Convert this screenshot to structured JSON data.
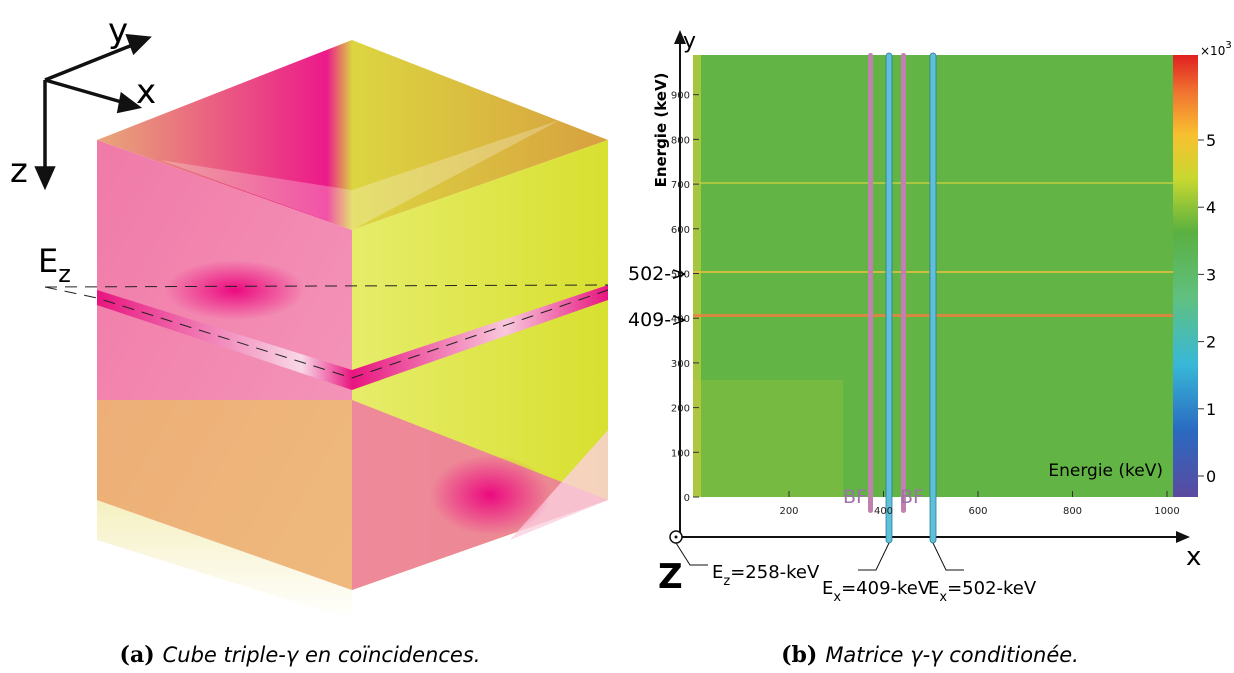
{
  "panel_a": {
    "axis_y": "y",
    "axis_x": "x",
    "axis_z": "z",
    "plane_label": "E",
    "plane_label_sub": "z",
    "caption_tag": "(a)",
    "caption": "Cube triple-γ en coïncidences."
  },
  "panel_b": {
    "y_axis_title": "Energie (keV)",
    "x_axis_title": "Energie (keV)",
    "axis_y": "y",
    "axis_x": "x",
    "axis_z": "Z",
    "xticks": [
      "200",
      "400",
      "600",
      "800",
      "1000"
    ],
    "yticks": [
      "0",
      "100",
      "200",
      "300",
      "400",
      "500",
      "600",
      "700",
      "800",
      "900"
    ],
    "colorbar_ticks": [
      "0",
      "1",
      "2",
      "3",
      "4",
      "5"
    ],
    "colorbar_base": "×10",
    "colorbar_exp": "3",
    "markers": [
      "502->",
      "409->"
    ],
    "bf_labels": [
      "BF",
      "BF"
    ],
    "gates": [
      {
        "main": "E",
        "sub": "z",
        "text": "=258-keV"
      },
      {
        "main": "E",
        "sub": "x",
        "text": "=409-keV"
      },
      {
        "main": "E",
        "sub": "x",
        "text": "=502-keV"
      }
    ],
    "caption_tag": "(b)",
    "caption": "Matrice γ-γ conditionée."
  }
}
